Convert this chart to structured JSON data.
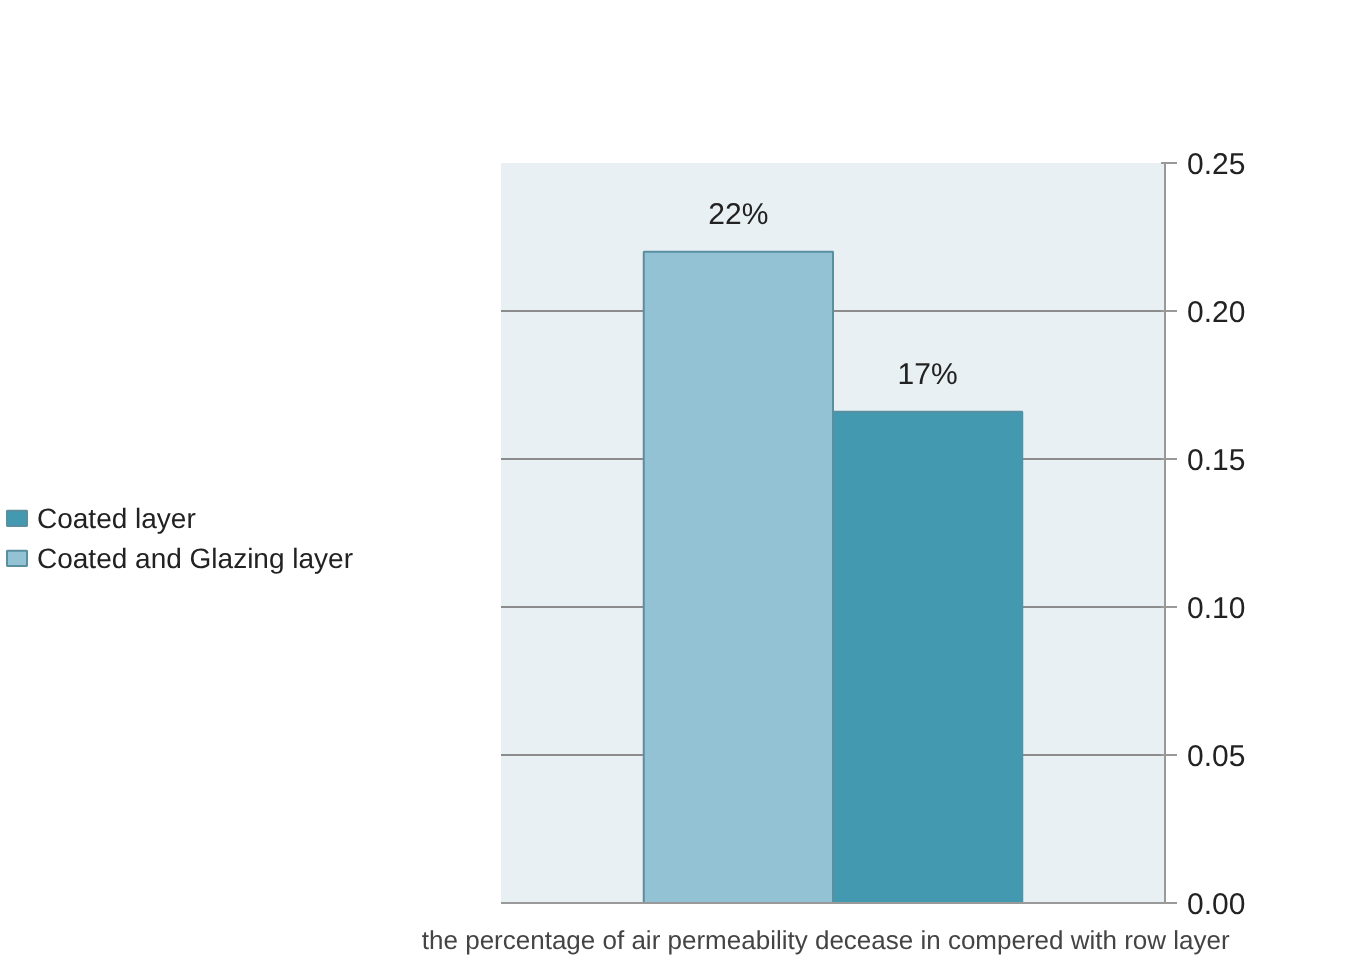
{
  "chart_data": {
    "type": "bar",
    "categories": [
      "the percentage of  air permeability decease in  compered with row layer"
    ],
    "series": [
      {
        "name": "Coated and Glazing layer",
        "color": "#92c2d4",
        "values": [
          0.22
        ],
        "value_labels": [
          "22%"
        ]
      },
      {
        "name": "Coated layer",
        "color": "#4299b0",
        "values": [
          0.166
        ],
        "value_labels": [
          "17%"
        ]
      }
    ],
    "ylim": [
      0,
      0.25
    ],
    "yticks": [
      {
        "value": 0,
        "label": "0.00"
      },
      {
        "value": 0.05,
        "label": "0.05"
      },
      {
        "value": 0.1,
        "label": "0.10"
      },
      {
        "value": 0.15,
        "label": "0.15"
      },
      {
        "value": 0.2,
        "label": "0.20"
      },
      {
        "value": 0.25,
        "label": "0.25"
      }
    ],
    "grid": "y",
    "legend": "left"
  }
}
